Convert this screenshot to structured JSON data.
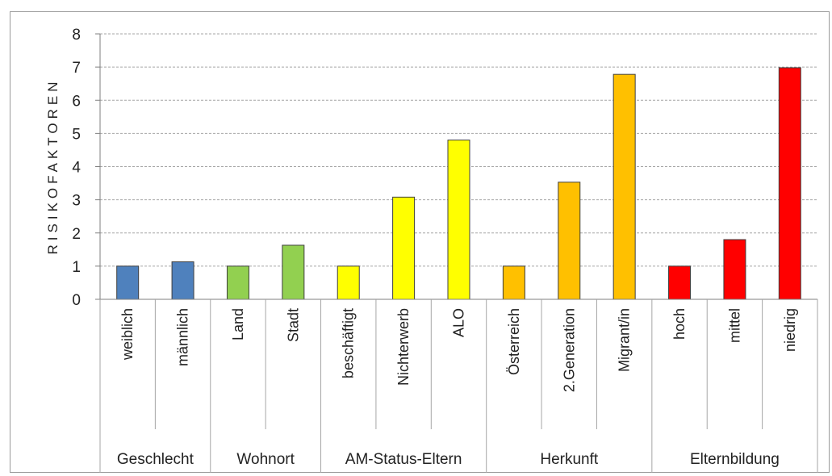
{
  "chart_data": {
    "type": "bar",
    "ylabel": "RISIKOFAKTOREN",
    "ylim": [
      0,
      8
    ],
    "yticks": [
      0,
      1,
      2,
      3,
      4,
      5,
      6,
      7,
      8
    ],
    "grid": true,
    "categories": [
      "weiblich",
      "männlich",
      "Land",
      "Stadt",
      "beschäftigt",
      "Nichterwerb",
      "ALO",
      "Österreich",
      "2.Generation",
      "Migrant/in",
      "hoch",
      "mittel",
      "niedrig"
    ],
    "values": [
      1,
      1.13,
      1,
      1.63,
      1,
      3.08,
      4.8,
      1,
      3.53,
      6.78,
      1,
      1.8,
      6.98
    ],
    "groups": [
      {
        "name": "Geschlecht",
        "count": 2,
        "color": "#4f81bd"
      },
      {
        "name": "Wohnort",
        "count": 2,
        "color": "#92d050"
      },
      {
        "name": "AM-Status-Eltern",
        "count": 3,
        "color": "#ffff00"
      },
      {
        "name": "Herkunft",
        "count": 3,
        "color": "#ffc000"
      },
      {
        "name": "Elternbildung",
        "count": 3,
        "color": "#ff0000"
      }
    ]
  }
}
